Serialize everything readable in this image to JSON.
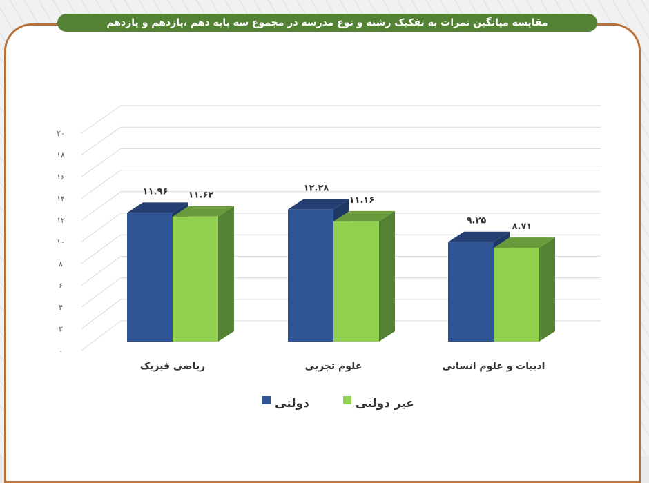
{
  "title": "مقایسه میانگین نمرات  به تفکیک رشته و نوع مدرسه در مجموع سه پایه دهم ،یازدهم و یازدهم",
  "chart_data": {
    "type": "bar",
    "style": "3d-clustered-column",
    "title": "مقایسه میانگین نمرات  به تفکیک رشته و نوع مدرسه در مجموع سه پایه دهم ،یازدهم و یازدهم",
    "categories": [
      "ریاضی فیزیک",
      "علوم تجربی",
      "ادبیات و علوم انسانی"
    ],
    "series": [
      {
        "name": "دولتی",
        "values": [
          11.96,
          12.28,
          9.25
        ],
        "labels": [
          "۱۱.۹۶",
          "۱۲.۲۸",
          "۹.۲۵"
        ],
        "color": "#2f5597"
      },
      {
        "name": "غیر دولتی",
        "values": [
          11.62,
          11.16,
          8.71
        ],
        "labels": [
          "۱۱.۶۲",
          "۱۱.۱۶",
          "۸.۷۱"
        ],
        "color": "#92d050"
      }
    ],
    "ylim": [
      0,
      20
    ],
    "yticks": [
      "۰",
      "۲",
      "۴",
      "۶",
      "۸",
      "۱۰",
      "۱۲",
      "۱۴",
      "۱۶",
      "۱۸",
      "۲۰"
    ],
    "grid": true,
    "legend": "bottom"
  }
}
